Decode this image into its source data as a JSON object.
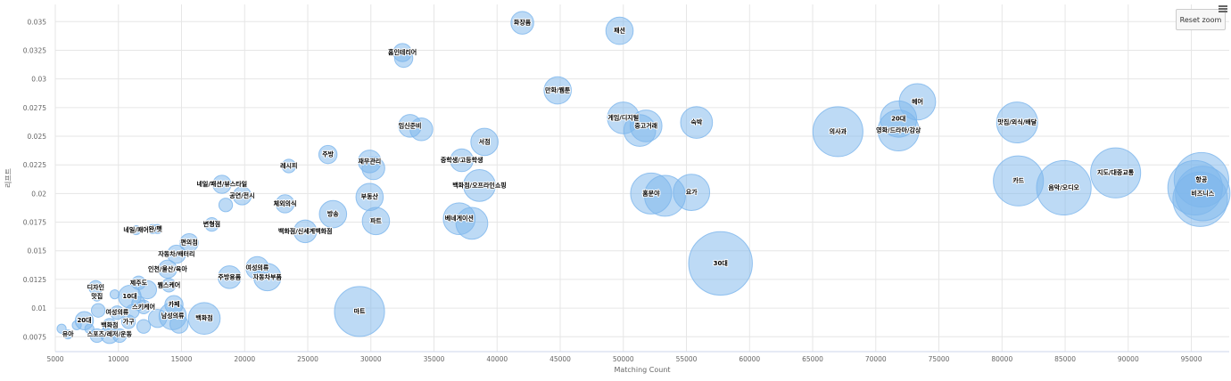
{
  "ui": {
    "reset_zoom_label": "Reset zoom",
    "menu_icon": "hamburger-menu-icon"
  },
  "chart_data": {
    "type": "bubble",
    "title": "",
    "xlabel": "Matching Count",
    "ylabel": "리프트",
    "xlim": [
      5000,
      98000
    ],
    "ylim": [
      0.0062,
      0.0365
    ],
    "xticks": [
      5000,
      10000,
      15000,
      20000,
      25000,
      30000,
      35000,
      40000,
      45000,
      50000,
      55000,
      60000,
      65000,
      70000,
      75000,
      80000,
      85000,
      90000,
      95000
    ],
    "yticks": [
      0.0075,
      0.01,
      0.0125,
      0.015,
      0.0175,
      0.02,
      0.0225,
      0.025,
      0.0275,
      0.03,
      0.0325,
      0.035
    ],
    "ytick_labels": [
      "0.0075",
      "0.01",
      "0.0125",
      "0.015",
      "0.0175",
      "0.02",
      "0.0225",
      "0.025",
      "0.0275",
      "0.03",
      "0.0325",
      "0.035"
    ],
    "series_color": "#7cb5ec",
    "points": [
      {
        "label": "화장품",
        "x": 42000,
        "y": 0.0349
      },
      {
        "label": "패션",
        "x": 49700,
        "y": 0.0342
      },
      {
        "label": "홈인테리어",
        "x": 32500,
        "y": 0.0323
      },
      {
        "label": "",
        "x": 32600,
        "y": 0.0318
      },
      {
        "label": "만화/웹툰",
        "x": 44800,
        "y": 0.029
      },
      {
        "label": "헤어",
        "x": 73300,
        "y": 0.028
      },
      {
        "label": "게임/디지털",
        "x": 50000,
        "y": 0.0266
      },
      {
        "label": "20대",
        "x": 71800,
        "y": 0.0265
      },
      {
        "label": "맛집/외식/배달",
        "x": 81200,
        "y": 0.0262
      },
      {
        "label": "숙박",
        "x": 55800,
        "y": 0.0262
      },
      {
        "label": "중고거래",
        "x": 51800,
        "y": 0.0259
      },
      {
        "label": "영화/드라마/감상",
        "x": 71800,
        "y": 0.0255
      },
      {
        "label": "임신준비",
        "x": 33100,
        "y": 0.0259
      },
      {
        "label": "",
        "x": 34000,
        "y": 0.0256
      },
      {
        "label": "의사과",
        "x": 67000,
        "y": 0.0254
      },
      {
        "label": "",
        "x": 51300,
        "y": 0.0255
      },
      {
        "label": "서점",
        "x": 39000,
        "y": 0.0245
      },
      {
        "label": "주방",
        "x": 26600,
        "y": 0.0234
      },
      {
        "label": "재무관리",
        "x": 29900,
        "y": 0.0228
      },
      {
        "label": "중학생/고등학생",
        "x": 37200,
        "y": 0.0229
      },
      {
        "label": "",
        "x": 30200,
        "y": 0.0222
      },
      {
        "label": "레시피",
        "x": 23500,
        "y": 0.0224
      },
      {
        "label": "지도/대중교통",
        "x": 89000,
        "y": 0.0218
      },
      {
        "label": "항공",
        "x": 95800,
        "y": 0.0212
      },
      {
        "label": "카드",
        "x": 81300,
        "y": 0.0211
      },
      {
        "label": "네일/패션/뷰스타일",
        "x": 18200,
        "y": 0.0208
      },
      {
        "label": "백화점/오프라인쇼핑",
        "x": 38600,
        "y": 0.0207
      },
      {
        "label": "음악/오디오",
        "x": 84900,
        "y": 0.0205
      },
      {
        "label": "",
        "x": 95300,
        "y": 0.0205
      },
      {
        "label": "비즈니스",
        "x": 95900,
        "y": 0.02
      },
      {
        "label": "",
        "x": 95700,
        "y": 0.0195
      },
      {
        "label": "요가",
        "x": 55400,
        "y": 0.0201
      },
      {
        "label": "홈분야",
        "x": 52200,
        "y": 0.02
      },
      {
        "label": "",
        "x": 53300,
        "y": 0.0198
      },
      {
        "label": "공연/전시",
        "x": 19800,
        "y": 0.0198
      },
      {
        "label": "부동산",
        "x": 29900,
        "y": 0.0197
      },
      {
        "label": "체외의식",
        "x": 23200,
        "y": 0.0191
      },
      {
        "label": "",
        "x": 18500,
        "y": 0.019
      },
      {
        "label": "방송",
        "x": 27000,
        "y": 0.0182
      },
      {
        "label": "베네게이션",
        "x": 37000,
        "y": 0.0178
      },
      {
        "label": "파트",
        "x": 30400,
        "y": 0.0176
      },
      {
        "label": "",
        "x": 38000,
        "y": 0.0174
      },
      {
        "label": "변형점",
        "x": 17400,
        "y": 0.0173
      },
      {
        "label": "백화점/신세계백화점",
        "x": 24800,
        "y": 0.0167
      },
      {
        "label": "애완/펫",
        "x": 12700,
        "y": 0.0169
      },
      {
        "label": "네일/패어",
        "x": 11400,
        "y": 0.0168
      },
      {
        "label": "",
        "x": 13100,
        "y": 0.0169
      },
      {
        "label": "편의점",
        "x": 15600,
        "y": 0.0157
      },
      {
        "label": "자동차/배터리",
        "x": 14600,
        "y": 0.0147
      },
      {
        "label": "30대",
        "x": 57700,
        "y": 0.0139
      },
      {
        "label": "인천/울산/육아",
        "x": 13900,
        "y": 0.0134
      },
      {
        "label": "여성의류",
        "x": 21000,
        "y": 0.0135
      },
      {
        "label": "주방용품",
        "x": 18800,
        "y": 0.0127
      },
      {
        "label": "자동차부품",
        "x": 21800,
        "y": 0.0127
      },
      {
        "label": "제주도",
        "x": 11600,
        "y": 0.0122
      },
      {
        "label": "웹스케어",
        "x": 14000,
        "y": 0.012
      },
      {
        "label": "디자인",
        "x": 8200,
        "y": 0.0118
      },
      {
        "label": "",
        "x": 12300,
        "y": 0.0116
      },
      {
        "label": "10대",
        "x": 10900,
        "y": 0.011
      },
      {
        "label": "맛집",
        "x": 8300,
        "y": 0.011
      },
      {
        "label": "",
        "x": 9700,
        "y": 0.0112
      },
      {
        "label": "",
        "x": 11600,
        "y": 0.0104
      },
      {
        "label": "카페",
        "x": 14400,
        "y": 0.0103
      },
      {
        "label": "스키케어",
        "x": 12000,
        "y": 0.0101
      },
      {
        "label": "마트",
        "x": 29100,
        "y": 0.0097
      },
      {
        "label": "여성의류",
        "x": 9900,
        "y": 0.0096
      },
      {
        "label": "",
        "x": 8400,
        "y": 0.0098
      },
      {
        "label": "",
        "x": 11100,
        "y": 0.0097
      },
      {
        "label": "남성의류",
        "x": 14300,
        "y": 0.0093
      },
      {
        "label": "백화점",
        "x": 16800,
        "y": 0.0091
      },
      {
        "label": "20대",
        "x": 7300,
        "y": 0.0089
      },
      {
        "label": "가구",
        "x": 10800,
        "y": 0.0088
      },
      {
        "label": "",
        "x": 13100,
        "y": 0.0091
      },
      {
        "label": "",
        "x": 14800,
        "y": 0.0086
      },
      {
        "label": "",
        "x": 12000,
        "y": 0.0084
      },
      {
        "label": "백화점",
        "x": 9300,
        "y": 0.0085
      },
      {
        "label": "",
        "x": 6700,
        "y": 0.0085
      },
      {
        "label": "",
        "x": 7700,
        "y": 0.0082
      },
      {
        "label": "",
        "x": 5500,
        "y": 0.0082
      },
      {
        "label": "유아",
        "x": 6000,
        "y": 0.0077
      },
      {
        "label": "스포츠/레저/운동",
        "x": 9300,
        "y": 0.0077
      },
      {
        "label": "",
        "x": 8300,
        "y": 0.0076
      },
      {
        "label": "",
        "x": 10100,
        "y": 0.0076
      }
    ],
    "sizes": [
      5,
      6,
      4,
      4,
      6,
      8,
      7,
      8,
      9,
      7,
      7,
      9,
      5,
      5,
      11,
      7,
      6,
      4,
      5,
      5,
      5,
      3,
      11,
      12,
      11,
      4,
      7,
      12,
      12,
      12,
      12,
      8,
      9,
      9,
      4,
      6,
      4,
      3,
      6,
      7,
      6,
      7,
      3,
      5,
      2,
      2,
      2,
      4,
      4,
      14,
      4,
      5,
      5,
      6,
      3,
      3,
      3,
      4,
      5,
      2,
      2,
      3,
      4,
      3,
      11,
      3,
      3,
      3,
      6,
      7,
      4,
      3,
      4,
      4,
      3,
      3,
      2,
      2,
      2,
      2,
      4,
      3,
      3
    ]
  }
}
